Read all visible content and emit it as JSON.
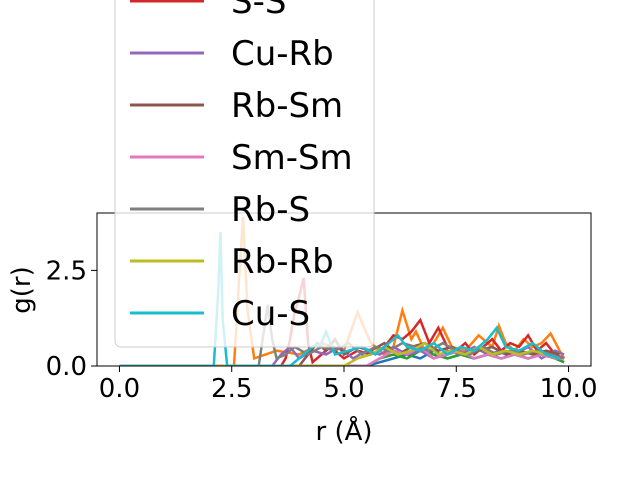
{
  "chart_data": {
    "type": "line",
    "xlabel": "r (Å)",
    "ylabel": "g(r)",
    "xlim": [
      -0.5,
      10.5
    ],
    "ylim": [
      0,
      4.0
    ],
    "xticks": [
      0.0,
      2.5,
      5.0,
      7.5,
      10.0
    ],
    "xtick_labels": [
      "0.0",
      "2.5",
      "5.0",
      "7.5",
      "10.0"
    ],
    "yticks": [
      0.0,
      2.5
    ],
    "ytick_labels": [
      "0.0",
      "2.5"
    ],
    "grid": false,
    "legend_position": "upper-left",
    "series": [
      {
        "name": "S-S",
        "color": "#d62728",
        "x": [
          0,
          3.6,
          3.7,
          3.8,
          3.9,
          4.0,
          4.1,
          4.2,
          4.3,
          4.5,
          4.7,
          5.0,
          5.3,
          5.6,
          5.9,
          6.1,
          6.3,
          6.5,
          6.7,
          6.9,
          7.1,
          7.3,
          7.5,
          7.7,
          7.9,
          8.1,
          8.3,
          8.5,
          8.7,
          8.9,
          9.1,
          9.3,
          9.5,
          9.7,
          9.9
        ],
        "y": [
          0,
          0,
          0.2,
          0.7,
          1.4,
          1.8,
          2.3,
          0.6,
          0.1,
          0.3,
          0.5,
          0.2,
          0.4,
          0.3,
          0.5,
          0.8,
          0.7,
          0.9,
          1.2,
          0.6,
          1.0,
          0.5,
          0.4,
          0.6,
          0.3,
          0.5,
          0.7,
          0.4,
          0.6,
          0.5,
          0.8,
          0.4,
          0.6,
          0.3,
          0.2
        ]
      },
      {
        "name": "Cu-Rb",
        "color": "#9467bd",
        "x": [
          0,
          3.4,
          3.6,
          3.8,
          4.0,
          4.3,
          4.6,
          4.9,
          5.2,
          5.5,
          5.8,
          6.1,
          6.4,
          6.7,
          7.0,
          7.3,
          7.6,
          7.9,
          8.2,
          8.5,
          8.8,
          9.1,
          9.4,
          9.7,
          9.9
        ],
        "y": [
          0,
          0,
          0.3,
          0.5,
          0.2,
          0.4,
          0.3,
          0.5,
          0.2,
          0.4,
          0.3,
          0.5,
          0.3,
          0.4,
          0.2,
          0.4,
          0.3,
          0.5,
          0.3,
          0.4,
          0.3,
          0.5,
          0.2,
          0.4,
          0.3
        ]
      },
      {
        "name": "Rb-Sm",
        "color": "#8c564b",
        "x": [
          0,
          4.0,
          4.2,
          4.4,
          4.6,
          4.8,
          5.0,
          5.3,
          5.6,
          5.9,
          6.2,
          6.5,
          6.8,
          7.1,
          7.4,
          7.7,
          8.0,
          8.3,
          8.6,
          8.9,
          9.2,
          9.5,
          9.8
        ],
        "y": [
          0,
          0,
          0.3,
          0.6,
          0.4,
          0.7,
          0.3,
          0.5,
          0.4,
          0.6,
          0.3,
          0.5,
          0.6,
          0.4,
          0.5,
          0.3,
          0.4,
          0.5,
          0.3,
          0.4,
          0.3,
          0.4,
          0.3
        ]
      },
      {
        "name": "Sm-Sm",
        "color": "#e377c2",
        "x": [
          0,
          5.5,
          5.8,
          6.1,
          6.4,
          6.7,
          7.0,
          7.3,
          7.6,
          7.9,
          8.2,
          8.5,
          8.8,
          9.1,
          9.4,
          9.7,
          9.9
        ],
        "y": [
          0,
          0,
          0.2,
          0.4,
          0.3,
          0.5,
          0.2,
          0.3,
          0.4,
          0.2,
          0.3,
          0.2,
          0.3,
          0.2,
          0.3,
          0.2,
          0.2
        ]
      },
      {
        "name": "Rb-S",
        "color": "#7f7f7f",
        "x": [
          0,
          3.1,
          3.2,
          3.3,
          3.4,
          3.5,
          3.7,
          3.9,
          4.2,
          4.5,
          4.8,
          5.1,
          5.4,
          5.7,
          6.0,
          6.3,
          6.6,
          6.9,
          7.2,
          7.5,
          7.8,
          8.1,
          8.4,
          8.7,
          9.0,
          9.3,
          9.6,
          9.9
        ],
        "y": [
          0,
          0,
          0.8,
          1.6,
          0.7,
          0.2,
          0.3,
          0.5,
          0.3,
          0.5,
          0.4,
          0.6,
          0.3,
          0.5,
          0.4,
          0.6,
          0.5,
          0.4,
          0.6,
          0.4,
          0.3,
          0.5,
          0.3,
          0.4,
          0.3,
          0.4,
          0.3,
          0.2
        ]
      },
      {
        "name": "Rb-Rb",
        "color": "#bcbd22",
        "x": [
          0,
          5.0,
          5.3,
          5.6,
          5.9,
          6.2,
          6.5,
          6.8,
          7.1,
          7.4,
          7.7,
          8.0,
          8.3,
          8.6,
          8.9,
          9.2,
          9.5,
          9.8
        ],
        "y": [
          0,
          0,
          0.2,
          0.3,
          0.5,
          0.3,
          0.4,
          0.6,
          0.3,
          0.4,
          0.3,
          0.5,
          0.3,
          0.4,
          0.3,
          0.4,
          0.3,
          0.2
        ]
      },
      {
        "name": "Cu-S",
        "color": "#17becf",
        "x": [
          0,
          2.1,
          2.2,
          2.25,
          2.3,
          2.4,
          2.6,
          3.0,
          3.4,
          3.8,
          4.1,
          4.3,
          4.5,
          4.6,
          4.8,
          5.1,
          5.4,
          5.7,
          6.0,
          6.2,
          6.4,
          6.7,
          7.0,
          7.3,
          7.6,
          7.9,
          8.2,
          8.4,
          8.6,
          8.9,
          9.2,
          9.5,
          9.8
        ],
        "y": [
          0,
          0,
          2.0,
          3.5,
          1.2,
          0,
          0,
          0,
          0,
          0,
          0.3,
          0.5,
          0.6,
          0.9,
          0.3,
          0.4,
          0.5,
          0.3,
          0.6,
          0.8,
          0.5,
          0.4,
          0.6,
          0.3,
          0.5,
          0.4,
          0.7,
          1.0,
          0.5,
          0.4,
          0.6,
          0.3,
          0.2
        ]
      }
    ],
    "background_series": [
      {
        "color": "#1f77b4",
        "x": [
          0,
          5.5,
          5.8,
          6.1,
          6.4,
          6.7,
          7.0,
          7.3,
          7.6,
          7.9,
          8.2,
          8.5,
          8.8,
          9.1,
          9.4,
          9.7,
          9.9
        ],
        "y": [
          0,
          0,
          0.1,
          0.2,
          0.3,
          0.2,
          0.4,
          0.2,
          0.3,
          0.2,
          0.3,
          0.2,
          0.3,
          0.2,
          0.3,
          0.2,
          0.1
        ]
      },
      {
        "color": "#ff7f0e",
        "x": [
          0,
          2.55,
          2.65,
          2.75,
          2.85,
          3.0,
          3.5,
          4.0,
          4.5,
          5.0,
          5.3,
          5.6,
          5.9,
          6.1,
          6.3,
          6.5,
          6.6,
          6.8,
          7.0,
          7.2,
          7.4,
          7.7,
          8.0,
          8.3,
          8.45,
          8.6,
          8.8,
          9.0,
          9.2,
          9.4,
          9.6,
          9.8,
          9.9
        ],
        "y": [
          0,
          0,
          2.0,
          3.9,
          1.5,
          0.2,
          0.4,
          0.3,
          0.6,
          0.4,
          1.4,
          0.6,
          0.3,
          0.5,
          1.45,
          0.7,
          0.9,
          0.4,
          0.6,
          1.0,
          0.5,
          0.4,
          0.8,
          0.5,
          1.05,
          0.6,
          0.4,
          0.7,
          0.5,
          0.6,
          0.85,
          0.4,
          0.2
        ]
      },
      {
        "color": "#2ca02c",
        "x": [
          0,
          5.5,
          5.8,
          6.1,
          6.4,
          6.7,
          7.0,
          7.3,
          7.6,
          7.9,
          8.2,
          8.5,
          8.8,
          9.1,
          9.4,
          9.7,
          9.9
        ],
        "y": [
          0,
          0,
          0.2,
          0.3,
          0.2,
          0.4,
          0.3,
          0.2,
          0.3,
          0.2,
          0.3,
          0.2,
          0.3,
          0.2,
          0.3,
          0.2,
          0.1
        ]
      }
    ]
  }
}
